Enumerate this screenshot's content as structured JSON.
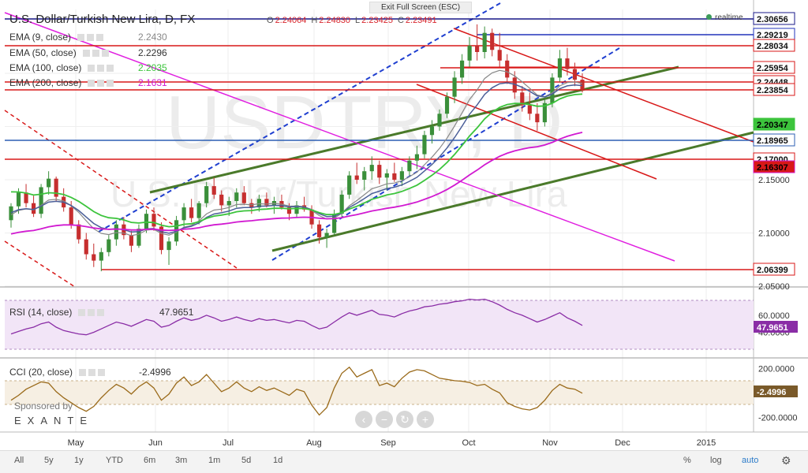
{
  "header": {
    "title": "U.S. Dollar/Turkish New Lira, D, FX",
    "ohlc": [
      {
        "k": "O",
        "v": "2.24064"
      },
      {
        "k": "H",
        "v": "2.24830"
      },
      {
        "k": "L",
        "v": "2.23425"
      },
      {
        "k": "C",
        "v": "2.23491"
      }
    ],
    "fullscreen": "Exit Full Screen (ESC)",
    "realtime": "realtime",
    "watermark_symbol": "USDTRY, D",
    "watermark_name": "U.S. Dollar/Turkish New Lira"
  },
  "indicators": [
    {
      "label": "EMA (9, close)",
      "value": "2.2430",
      "color": "#888888"
    },
    {
      "label": "EMA (50, close)",
      "value": "2.2296",
      "color": "#333333"
    },
    {
      "label": "EMA (100, close)",
      "value": "2.2035",
      "color": "#3cc43c"
    },
    {
      "label": "EMA (200, close)",
      "value": "2.1631",
      "color": "#d11ad1"
    }
  ],
  "sponsor": {
    "line1": "Sponsored by",
    "line2": "EXANTE"
  },
  "chart_data": {
    "type": "candlestick",
    "title": "U.S. Dollar/Turkish New Lira, D, FX",
    "ylim": [
      2.05,
      2.31
    ],
    "y_ticks": [
      "2.05000",
      "2.10000",
      "2.15000"
    ],
    "x_ticks": [
      "May",
      "Jun",
      "Jul",
      "Aug",
      "Sep",
      "Oct",
      "Nov",
      "Dec",
      "2015"
    ],
    "colors": {
      "up": "#3a8f3a",
      "down": "#c62e2e"
    },
    "candles_daily": [
      [
        2.112,
        2.128,
        2.105,
        2.125
      ],
      [
        2.125,
        2.142,
        2.118,
        2.138
      ],
      [
        2.138,
        2.146,
        2.124,
        2.128
      ],
      [
        2.128,
        2.135,
        2.115,
        2.118
      ],
      [
        2.118,
        2.146,
        2.114,
        2.143
      ],
      [
        2.143,
        2.158,
        2.136,
        2.151
      ],
      [
        2.151,
        2.153,
        2.13,
        2.134
      ],
      [
        2.134,
        2.142,
        2.12,
        2.124
      ],
      [
        2.124,
        2.13,
        2.104,
        2.108
      ],
      [
        2.108,
        2.112,
        2.09,
        2.094
      ],
      [
        2.094,
        2.1,
        2.075,
        2.08
      ],
      [
        2.08,
        2.09,
        2.068,
        2.074
      ],
      [
        2.074,
        2.086,
        2.064,
        2.082
      ],
      [
        2.082,
        2.098,
        2.078,
        2.094
      ],
      [
        2.094,
        2.112,
        2.088,
        2.108
      ],
      [
        2.108,
        2.115,
        2.094,
        2.098
      ],
      [
        2.098,
        2.102,
        2.082,
        2.088
      ],
      [
        2.088,
        2.108,
        2.086,
        2.104
      ],
      [
        2.104,
        2.122,
        2.1,
        2.118
      ],
      [
        2.118,
        2.124,
        2.102,
        2.106
      ],
      [
        2.106,
        2.11,
        2.08,
        2.084
      ],
      [
        2.084,
        2.096,
        2.07,
        2.092
      ],
      [
        2.092,
        2.116,
        2.088,
        2.112
      ],
      [
        2.112,
        2.128,
        2.106,
        2.124
      ],
      [
        2.124,
        2.132,
        2.11,
        2.114
      ],
      [
        2.114,
        2.13,
        2.108,
        2.128
      ],
      [
        2.128,
        2.148,
        2.124,
        2.144
      ],
      [
        2.144,
        2.152,
        2.132,
        2.136
      ],
      [
        2.136,
        2.14,
        2.12,
        2.126
      ],
      [
        2.126,
        2.134,
        2.116,
        2.13
      ],
      [
        2.13,
        2.142,
        2.124,
        2.138
      ],
      [
        2.138,
        2.144,
        2.126,
        2.128
      ],
      [
        2.128,
        2.132,
        2.118,
        2.124
      ],
      [
        2.124,
        2.136,
        2.12,
        2.132
      ],
      [
        2.132,
        2.138,
        2.124,
        2.126
      ],
      [
        2.126,
        2.134,
        2.118,
        2.13
      ],
      [
        2.13,
        2.136,
        2.122,
        2.124
      ],
      [
        2.124,
        2.128,
        2.112,
        2.118
      ],
      [
        2.118,
        2.13,
        2.114,
        2.126
      ],
      [
        2.126,
        2.134,
        2.12,
        2.122
      ],
      [
        2.122,
        2.126,
        2.104,
        2.108
      ],
      [
        2.108,
        2.112,
        2.09,
        2.096
      ],
      [
        2.096,
        2.104,
        2.086,
        2.1
      ],
      [
        2.1,
        2.122,
        2.098,
        2.118
      ],
      [
        2.118,
        2.14,
        2.114,
        2.136
      ],
      [
        2.136,
        2.158,
        2.132,
        2.154
      ],
      [
        2.154,
        2.166,
        2.146,
        2.15
      ],
      [
        2.15,
        2.162,
        2.14,
        2.158
      ],
      [
        2.158,
        2.172,
        2.15,
        2.164
      ],
      [
        2.164,
        2.168,
        2.146,
        2.152
      ],
      [
        2.152,
        2.16,
        2.14,
        2.156
      ],
      [
        2.156,
        2.166,
        2.148,
        2.15
      ],
      [
        2.15,
        2.162,
        2.144,
        2.158
      ],
      [
        2.158,
        2.172,
        2.154,
        2.168
      ],
      [
        2.168,
        2.182,
        2.16,
        2.174
      ],
      [
        2.174,
        2.196,
        2.17,
        2.192
      ],
      [
        2.192,
        2.206,
        2.184,
        2.2
      ],
      [
        2.2,
        2.216,
        2.196,
        2.212
      ],
      [
        2.212,
        2.232,
        2.208,
        2.228
      ],
      [
        2.228,
        2.252,
        2.222,
        2.246
      ],
      [
        2.246,
        2.268,
        2.24,
        2.262
      ],
      [
        2.262,
        2.284,
        2.256,
        2.276
      ],
      [
        2.276,
        2.296,
        2.262,
        2.27
      ],
      [
        2.27,
        2.294,
        2.264,
        2.288
      ],
      [
        2.288,
        2.292,
        2.266,
        2.272
      ],
      [
        2.272,
        2.288,
        2.256,
        2.262
      ],
      [
        2.262,
        2.268,
        2.24,
        2.246
      ],
      [
        2.246,
        2.252,
        2.226,
        2.232
      ],
      [
        2.232,
        2.238,
        2.214,
        2.22
      ],
      [
        2.22,
        2.232,
        2.206,
        2.212
      ],
      [
        2.212,
        2.222,
        2.196,
        2.204
      ],
      [
        2.204,
        2.226,
        2.2,
        2.222
      ],
      [
        2.222,
        2.25,
        2.218,
        2.246
      ],
      [
        2.246,
        2.272,
        2.242,
        2.264
      ],
      [
        2.264,
        2.274,
        2.248,
        2.254
      ],
      [
        2.254,
        2.26,
        2.238,
        2.244
      ],
      [
        2.244,
        2.25,
        2.232,
        2.235
      ]
    ],
    "horizontal_levels": [
      {
        "value": 2.30656,
        "label": "2.30656",
        "color": "#1a1a8a"
      },
      {
        "value": 2.29219,
        "label": "2.29219",
        "color": "#2233bb"
      },
      {
        "value": 2.28034,
        "label": "2.28034",
        "color": "#d81818"
      },
      {
        "value": 2.25954,
        "label": "2.25954",
        "color": "#d81818"
      },
      {
        "value": 2.24448,
        "label": "2.24448",
        "color": "#d81818"
      },
      {
        "value": 2.23854,
        "label": "2.23854",
        "color": "#d81818"
      },
      {
        "value": 2.20347,
        "label": "2.20347",
        "color": "#3cc43c"
      },
      {
        "value": 2.18965,
        "label": "2.18965",
        "color": "#2d5fb3"
      },
      {
        "value": 2.17,
        "label": "2.17000",
        "color": "#d81818"
      },
      {
        "value": 2.16307,
        "label": "2.16307",
        "color": "#d11ad1"
      },
      {
        "value": 2.06399,
        "label": "2.06399",
        "color": "#d81818"
      }
    ],
    "rsi": {
      "label": "RSI (14, close)",
      "value": "47.9651",
      "ylim": [
        20,
        85
      ],
      "ticks": [
        "60.0000",
        "40.0000"
      ],
      "values": [
        38,
        41,
        44,
        46,
        50,
        52,
        46,
        42,
        40,
        38,
        37,
        40,
        44,
        48,
        52,
        50,
        47,
        51,
        55,
        53,
        46,
        48,
        53,
        57,
        54,
        56,
        60,
        57,
        53,
        55,
        58,
        55,
        53,
        56,
        54,
        55,
        53,
        51,
        54,
        53,
        48,
        44,
        46,
        52,
        58,
        63,
        60,
        63,
        66,
        61,
        60,
        58,
        62,
        65,
        67,
        70,
        71,
        73,
        74,
        76,
        77,
        79,
        78,
        79,
        76,
        72,
        67,
        63,
        60,
        56,
        52,
        55,
        59,
        63,
        57,
        53,
        48
      ]
    },
    "cci": {
      "label": "CCI (20, close)",
      "value": "-2.4996",
      "ylim": [
        -300,
        260
      ],
      "ticks": [
        "200.0000",
        "-200.0000"
      ],
      "values": [
        -60,
        -20,
        30,
        60,
        90,
        80,
        10,
        -40,
        -80,
        -120,
        -150,
        -110,
        -40,
        20,
        70,
        40,
        -10,
        50,
        90,
        40,
        -60,
        -10,
        80,
        130,
        60,
        90,
        150,
        80,
        10,
        40,
        90,
        40,
        10,
        50,
        20,
        40,
        10,
        -20,
        30,
        10,
        -100,
        -180,
        -120,
        40,
        160,
        210,
        130,
        160,
        190,
        60,
        80,
        50,
        120,
        170,
        190,
        180,
        150,
        120,
        110,
        100,
        95,
        85,
        60,
        70,
        30,
        0,
        -80,
        -110,
        -130,
        -140,
        -120,
        -60,
        20,
        70,
        40,
        30,
        -2.5
      ]
    },
    "dates": [
      "May",
      "Jun",
      "Jul",
      "Aug",
      "Sep",
      "Oct",
      "Nov",
      "Dec",
      "2015"
    ]
  },
  "toolbar": {
    "ranges": [
      "All",
      "5y",
      "1y",
      "YTD",
      "6m",
      "3m",
      "1m",
      "5d",
      "1d"
    ],
    "right": [
      "%",
      "log",
      "auto"
    ]
  },
  "icons": [
    "zoom-out-icon",
    "zoom-minus-icon",
    "reset-icon",
    "zoom-plus-icon",
    "zoom-in-icon",
    "settings-gear-icon"
  ]
}
